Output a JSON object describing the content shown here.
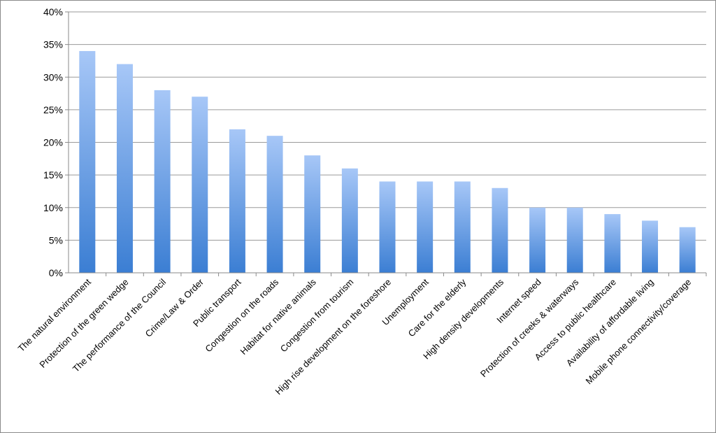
{
  "chart_data": {
    "type": "bar",
    "title": "",
    "xlabel": "",
    "ylabel": "",
    "ylim": [
      0,
      40
    ],
    "y_ticks": [
      "0%",
      "5%",
      "10%",
      "15%",
      "20%",
      "25%",
      "30%",
      "35%",
      "40%"
    ],
    "grid": true,
    "legend": "none",
    "bar_gradient": {
      "top": "#a7c7f7",
      "bottom": "#3b7ed3"
    },
    "categories": [
      "The natural environment",
      "Protection of the green wedge",
      "The performance of the Council",
      "Crime/Law & Order",
      "Public transport",
      "Congestion on the roads",
      "Habitat for native animals",
      "Congestion from tourism",
      "High rise development on the foreshore",
      "Unemployment",
      "Care for the elderly",
      "High density developments",
      "Internet speed",
      "Protection of creeks & waterways",
      "Access to public healthcare",
      "Availability of affordable living",
      "Mobile phone connectivity/coverage"
    ],
    "values": [
      34,
      32,
      28,
      27,
      22,
      21,
      18,
      16,
      14,
      14,
      14,
      13,
      10,
      10,
      9,
      8,
      7
    ]
  }
}
